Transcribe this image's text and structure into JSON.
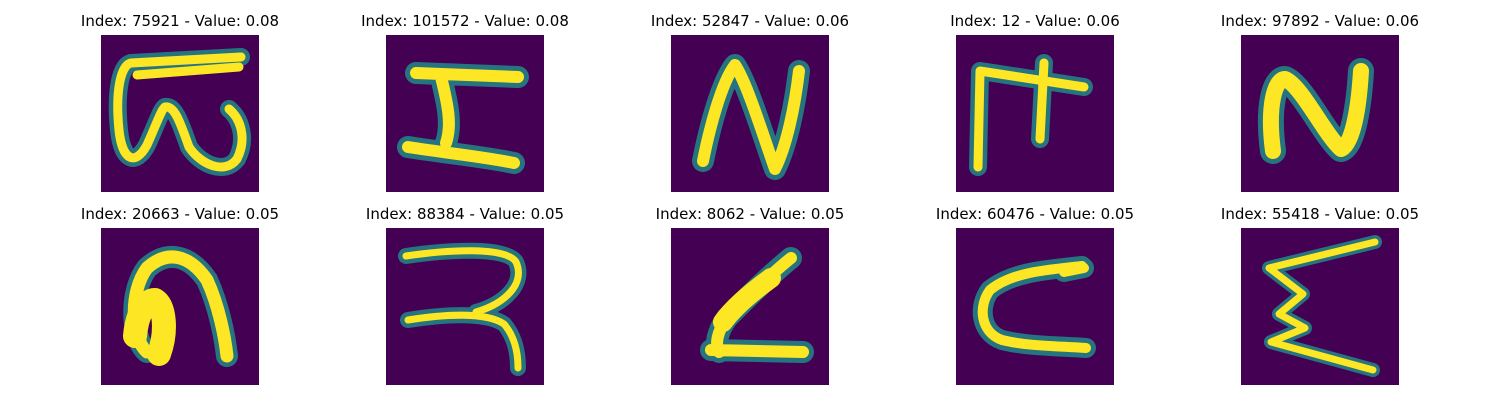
{
  "figure": {
    "background_color": "#440154",
    "halo_color": "#21918c",
    "stroke_color": "#fde725",
    "panels": [
      {
        "title": "Index: 75921 - Value: 0.08"
      },
      {
        "title": "Index: 101572 - Value: 0.08"
      },
      {
        "title": "Index: 52847 - Value: 0.06"
      },
      {
        "title": "Index: 12 - Value: 0.06"
      },
      {
        "title": "Index: 97892 - Value: 0.06"
      },
      {
        "title": "Index: 20663 - Value: 0.05"
      },
      {
        "title": "Index: 88384 - Value: 0.05"
      },
      {
        "title": "Index: 8062 - Value: 0.05"
      },
      {
        "title": "Index: 60476 - Value: 0.05"
      },
      {
        "title": "Index: 55418 - Value: 0.05"
      }
    ]
  }
}
